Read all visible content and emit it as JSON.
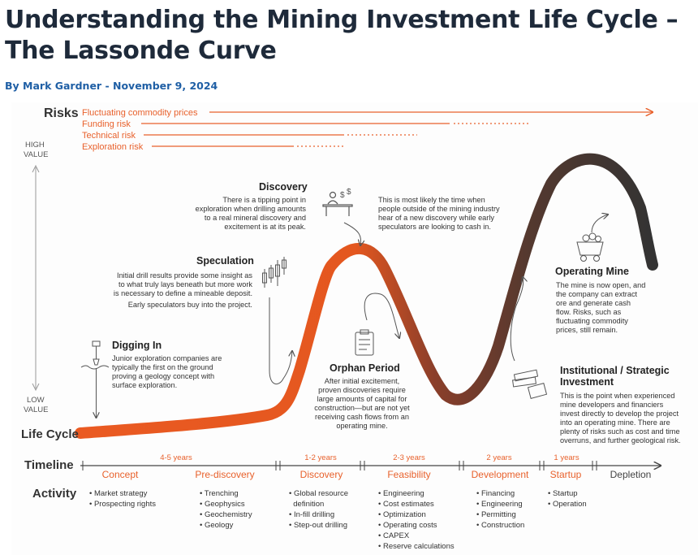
{
  "article": {
    "title_line1": "Understanding the Mining Investment Life Cycle –",
    "title_line2": "The Lassonde Curve",
    "byline_prefix": "By ",
    "author": "Mark Gardner",
    "separator": " - ",
    "date": "November 9, 2024"
  },
  "figure": {
    "risks_label": "Risks",
    "risks": [
      "Fluctuating commodity prices",
      "Funding risk",
      "Technical risk",
      "Exploration risk"
    ],
    "high_value": [
      "HIGH",
      "VALUE"
    ],
    "low_value": [
      "LOW",
      "VALUE"
    ],
    "life_cycle_label": "Life Cycle",
    "timeline_label": "Timeline",
    "activity_label": "Activity",
    "colors": {
      "accent": "#e8612c",
      "dark": "#3a3a3a",
      "text": "#333333"
    },
    "stages": {
      "discovery": {
        "title": "Discovery",
        "text": [
          "There is a tipping point in",
          "exploration when drilling amounts",
          "to a real mineral discovery and",
          "excitement is at its peak."
        ],
        "note": [
          "This is most likely the time when",
          "people outside of the mining industry",
          "hear of a new discovery while early",
          "speculators are looking to cash in."
        ]
      },
      "speculation": {
        "title": "Speculation",
        "text": [
          "Initial drill results provide some insight as",
          "to what truly lays beneath but more work",
          "is necessary to define a mineable deposit."
        ],
        "text2": "Early speculators buy into the project."
      },
      "digging_in": {
        "title": "Digging In",
        "text": [
          "Junior exploration companies are",
          "typically the first on the ground",
          "proving a geology concept with",
          "surface exploration."
        ]
      },
      "orphan_period": {
        "title": "Orphan Period",
        "text": [
          "After initial excitement,",
          "proven discoveries require",
          "large amounts of capital for",
          "construction—but are not yet",
          "receiving cash flows from an",
          "operating mine."
        ]
      },
      "operating_mine": {
        "title": "Operating Mine",
        "text": [
          "The mine is now open, and",
          "the company can extract",
          "ore and generate cash",
          "flow. Risks, such as",
          "fluctuating commodity",
          "prices, still remain."
        ]
      },
      "institutional": {
        "title": [
          "Institutional / Strategic",
          "Investment"
        ],
        "text": [
          "This is the point when experienced",
          "mine developers and financiers",
          "invest directly to develop the project",
          "into an operating mine. There are",
          "plenty of risks such as cost and time",
          "overruns, and further geological risk."
        ]
      }
    },
    "timeline": [
      {
        "phase": "Concept",
        "years": "4-5 years"
      },
      {
        "phase": "Pre-discovery",
        "years": ""
      },
      {
        "phase": "Discovery",
        "years": "1-2 years"
      },
      {
        "phase": "Feasibility",
        "years": "2-3 years"
      },
      {
        "phase": "Development",
        "years": "2 years"
      },
      {
        "phase": "Startup",
        "years": "1 years"
      },
      {
        "phase": "Depletion",
        "years": ""
      }
    ],
    "activities": [
      [
        "• Market strategy",
        "• Prospecting rights"
      ],
      [
        "• Trenching",
        "• Geophysics",
        "• Geochemistry",
        "• Geology"
      ],
      [
        "• Global resource",
        "  definition",
        "• In-fill drilling",
        "• Step-out drilling"
      ],
      [
        "• Engineering",
        "• Cost estimates",
        "• Optimization",
        "• Operating costs",
        "• CAPEX",
        "• Reserve calculations"
      ],
      [
        "• Financing",
        "• Engineering",
        "• Permitting",
        "• Construction"
      ],
      [
        "• Startup",
        "• Operation"
      ]
    ]
  }
}
